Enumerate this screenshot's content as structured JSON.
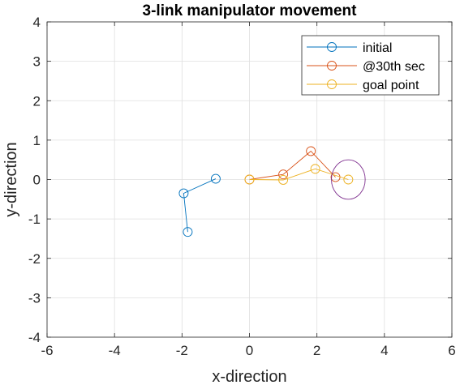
{
  "chart_data": {
    "type": "line",
    "title": "3-link manipulator movement",
    "xlabel": "x-direction",
    "ylabel": "y-direction",
    "xlim": [
      -6,
      6
    ],
    "ylim": [
      -4,
      4
    ],
    "xticks": [
      -6,
      -4,
      -2,
      0,
      2,
      4,
      6
    ],
    "yticks": [
      -4,
      -3,
      -2,
      -1,
      0,
      1,
      2,
      3,
      4
    ],
    "xtick_labels": [
      "-6",
      "-4",
      "-2",
      "0",
      "2",
      "4",
      "6"
    ],
    "ytick_labels": [
      "-4",
      "-3",
      "-2",
      "-1",
      "0",
      "1",
      "2",
      "3",
      "4"
    ],
    "grid": true,
    "legend_position": "top-right",
    "series": [
      {
        "name": "initial",
        "color": "#0072BD",
        "marker": "circle",
        "x": [
          -1.0,
          -1.95,
          -1.83
        ],
        "y": [
          0.02,
          -0.35,
          -1.33
        ]
      },
      {
        "name": "@30th sec",
        "color": "#D95319",
        "marker": "circle",
        "x": [
          0.0,
          1.0,
          1.82,
          2.55
        ],
        "y": [
          0.0,
          0.13,
          0.72,
          0.06
        ]
      },
      {
        "name": "goal point",
        "color": "#EDB120",
        "marker": "circle",
        "x": [
          0.0,
          1.0,
          1.95,
          2.93
        ],
        "y": [
          0.0,
          -0.01,
          0.27,
          0.0
        ]
      }
    ],
    "annotations": [
      {
        "shape": "circle",
        "color": "#7E2F8E",
        "center": [
          2.93,
          0.0
        ],
        "radius": 0.5
      }
    ]
  }
}
